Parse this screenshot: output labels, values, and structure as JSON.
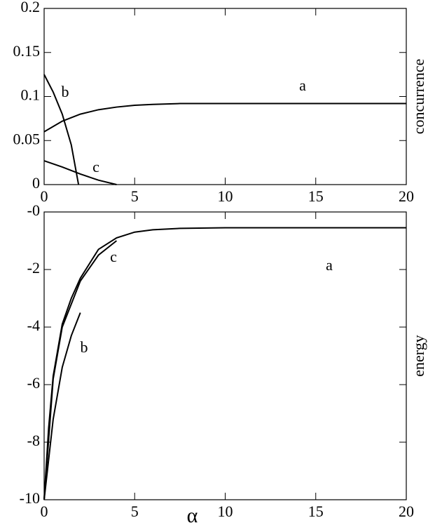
{
  "chart_data": [
    {
      "type": "line",
      "ylabel": "concurrence",
      "xlim": [
        0,
        20
      ],
      "xticks": [
        0,
        5,
        10,
        15,
        20
      ],
      "ylim": [
        0,
        0.2
      ],
      "yticks": [
        0,
        0.05,
        0.1,
        0.15,
        0.2
      ],
      "series": [
        {
          "name": "a",
          "color": "#000000",
          "x": [
            0,
            1,
            2,
            3,
            4,
            5,
            6,
            7.5,
            10,
            15,
            20
          ],
          "values": [
            0.06,
            0.072,
            0.08,
            0.085,
            0.088,
            0.09,
            0.091,
            0.092,
            0.092,
            0.092,
            0.092
          ]
        },
        {
          "name": "b",
          "color": "#000000",
          "x": [
            0,
            0.5,
            1,
            1.5,
            1.9
          ],
          "values": [
            0.125,
            0.105,
            0.08,
            0.045,
            0
          ]
        },
        {
          "name": "c",
          "color": "#000000",
          "x": [
            0,
            1,
            2,
            3,
            4
          ],
          "values": [
            0.027,
            0.02,
            0.012,
            0.005,
            0
          ]
        }
      ]
    },
    {
      "type": "line",
      "xlabel": "α",
      "ylabel": "energy",
      "xlim": [
        0,
        20
      ],
      "xticks": [
        0,
        5,
        10,
        15,
        20
      ],
      "ylim": [
        -10,
        0
      ],
      "yticks": [
        -10,
        -8,
        -6,
        -4,
        -2,
        {
          "value": 0,
          "label": "-0"
        }
      ],
      "series": [
        {
          "name": "a",
          "color": "#000000",
          "x": [
            0,
            0.25,
            0.5,
            1,
            1.5,
            2,
            3,
            4,
            5,
            6,
            7.5,
            10,
            20
          ],
          "values": [
            -10,
            -7.5,
            -5.7,
            -3.9,
            -3.0,
            -2.3,
            -1.3,
            -0.9,
            -0.7,
            -0.62,
            -0.57,
            -0.55,
            -0.55
          ]
        },
        {
          "name": "c",
          "color": "#000000",
          "x": [
            0,
            0.5,
            1,
            2,
            3,
            4
          ],
          "values": [
            -10,
            -5.8,
            -4.0,
            -2.4,
            -1.5,
            -1.0
          ]
        },
        {
          "name": "b",
          "color": "#000000",
          "x": [
            0,
            0.5,
            1,
            1.5,
            2
          ],
          "values": [
            -10,
            -7.2,
            -5.4,
            -4.3,
            -3.5
          ]
        }
      ]
    }
  ]
}
